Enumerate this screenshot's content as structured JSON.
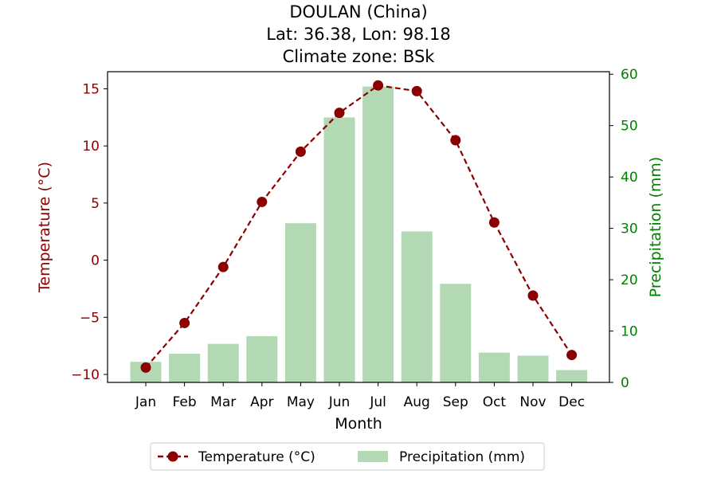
{
  "chart_data": {
    "type": "bar",
    "title_lines": [
      "DOULAN (China)",
      "Lat: 36.38, Lon: 98.18",
      "Climate zone: BSk"
    ],
    "xlabel": "Month",
    "categories": [
      "Jan",
      "Feb",
      "Mar",
      "Apr",
      "May",
      "Jun",
      "Jul",
      "Aug",
      "Sep",
      "Oct",
      "Nov",
      "Dec"
    ],
    "series": [
      {
        "name": "Temperature (°C)",
        "type": "line",
        "axis": "left",
        "color": "#8b0000",
        "line_style": "dashed",
        "marker": "circle",
        "values": [
          -9.4,
          -5.5,
          -0.6,
          5.1,
          9.5,
          12.9,
          15.3,
          14.8,
          10.5,
          3.3,
          -3.1,
          -8.3
        ]
      },
      {
        "name": "Precipitation (mm)",
        "type": "bar",
        "axis": "right",
        "color": "#b2d9b4",
        "values": [
          4.0,
          5.6,
          7.5,
          9.0,
          31.0,
          51.6,
          57.6,
          29.4,
          19.2,
          5.8,
          5.2,
          2.4
        ]
      }
    ],
    "y_left": {
      "label": "Temperature (°C)",
      "color": "#8b0000",
      "lim": [
        -10.7,
        16.5
      ],
      "ticks": [
        -10,
        -5,
        0,
        5,
        10,
        15
      ],
      "tick_labels": [
        "−10",
        "−5",
        "0",
        "5",
        "10",
        "15"
      ]
    },
    "y_right": {
      "label": "Precipitation (mm)",
      "color": "#008000",
      "lim": [
        0,
        60.5
      ],
      "ticks": [
        0,
        10,
        20,
        30,
        40,
        50,
        60
      ],
      "tick_labels": [
        "0",
        "10",
        "20",
        "30",
        "40",
        "50",
        "60"
      ]
    },
    "grid": false,
    "legend_placement": "bottom-center, below chart"
  }
}
